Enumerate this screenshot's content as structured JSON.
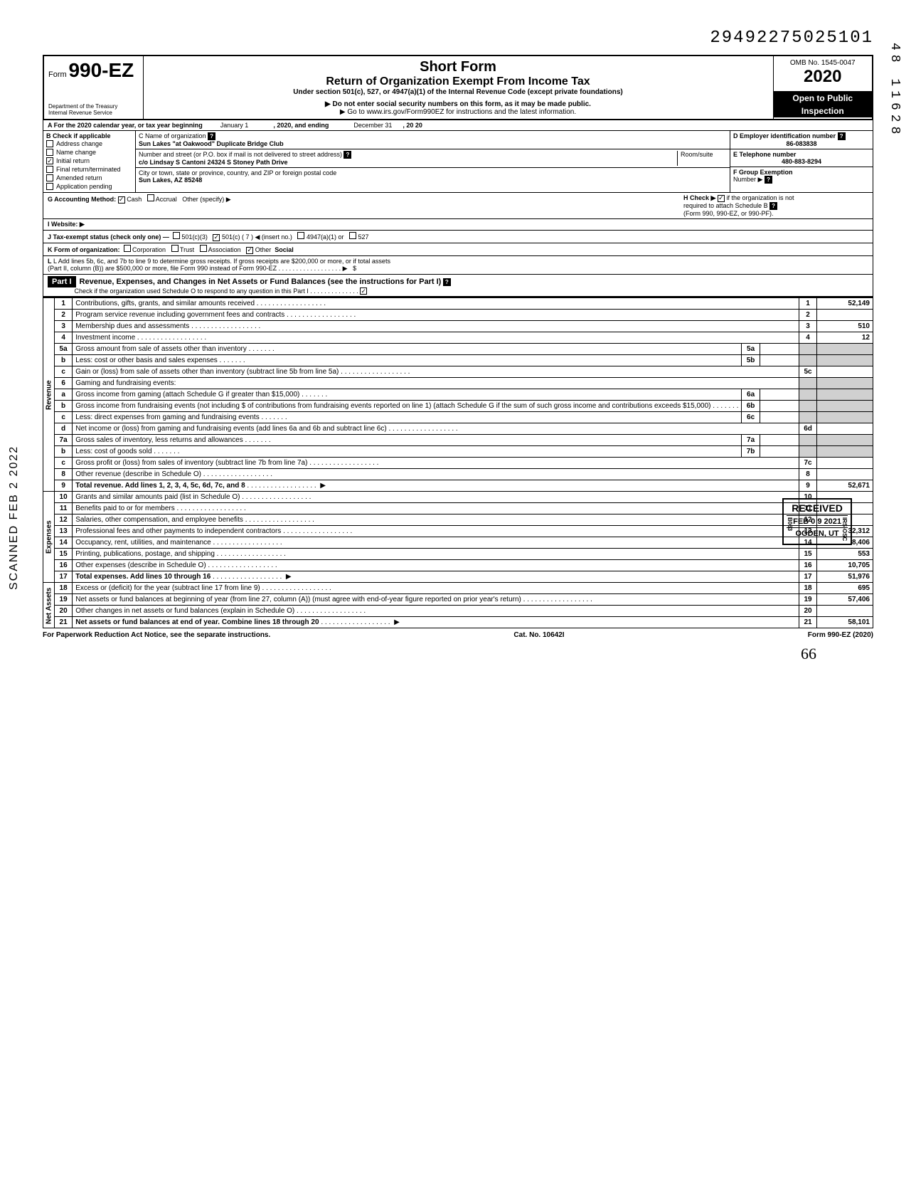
{
  "dln": "29492275025101",
  "side_number": "48 11628",
  "side_stamp": "SCANNED FEB 2 2022",
  "header": {
    "form_prefix": "Form",
    "form_number": "990-EZ",
    "dept": "Department of the Treasury",
    "irs": "Internal Revenue Service",
    "title1": "Short Form",
    "title2": "Return of Organization Exempt From Income Tax",
    "subtitle": "Under section 501(c), 527, or 4947(a)(1) of the Internal Revenue Code (except private foundations)",
    "note1": "▶ Do not enter social security numbers on this form, as it may be made public.",
    "note2": "▶ Go to www.irs.gov/Form990EZ for instructions and the latest information.",
    "omb": "OMB No. 1545-0047",
    "year": "2020",
    "open1": "Open to Public",
    "open2": "Inspection"
  },
  "rowA": {
    "label": "A For the 2020 calendar year, or tax year beginning",
    "begin": "January 1",
    "mid": ", 2020, and ending",
    "end": "December 31",
    "yr": ", 20  20"
  },
  "B": {
    "hdr": "B Check if applicable",
    "items": [
      "Address change",
      "Name change",
      "Initial return",
      "Final return/terminated",
      "Amended return",
      "Application pending"
    ],
    "checked_idx": 2
  },
  "C": {
    "label": "C Name of organization",
    "name": "Sun Lakes \"at Oakwood\" Duplicate Bridge Club",
    "addr_label": "Number and street (or P.O. box if mail is not delivered to street address)",
    "addr": "c/o Lindsay S Cantoni  24324 S Stoney Path Drive",
    "room_label": "Room/suite",
    "city_label": "City or town, state or province, country, and ZIP or foreign postal code",
    "city": "Sun Lakes, AZ 85248"
  },
  "D": {
    "label": "D Employer identification number",
    "value": "86-083838"
  },
  "E": {
    "label": "E Telephone number",
    "value": "480-883-8294"
  },
  "F": {
    "label": "F Group Exemption",
    "label2": "Number ▶"
  },
  "G": {
    "label": "G Accounting Method:",
    "cash": "Cash",
    "accrual": "Accrual",
    "other": "Other (specify) ▶"
  },
  "H": {
    "label": "H Check ▶",
    "text1": "if the organization is not",
    "text2": "required to attach Schedule B",
    "text3": "(Form 990, 990-EZ, or 990-PF)."
  },
  "I": {
    "label": "I  Website: ▶"
  },
  "J": {
    "label": "J Tax-exempt status (check only one) —",
    "o1": "501(c)(3)",
    "o2": "501(c) (  7  ) ◀ (insert no.)",
    "o3": "4947(a)(1) or",
    "o4": "527"
  },
  "K": {
    "label": "K Form of organization:",
    "corp": "Corporation",
    "trust": "Trust",
    "assoc": "Association",
    "other": "Other",
    "other_val": "Social"
  },
  "L": {
    "text1": "L Add lines 5b, 6c, and 7b to line 9 to determine gross receipts. If gross receipts are $200,000 or more, or if total assets",
    "text2": "(Part II, column (B)) are $500,000 or more, file Form 990 instead of Form 990-EZ",
    "arrow": "▶",
    "dollar": "$"
  },
  "part1": {
    "hdr": "Part I",
    "title": "Revenue, Expenses, and Changes in Net Assets or Fund Balances (see the instructions for Part I)",
    "check_line": "Check if the organization used Schedule O to respond to any question in this Part I"
  },
  "sections": {
    "revenue": "Revenue",
    "expenses": "Expenses",
    "netassets": "Net Assets"
  },
  "rows": [
    {
      "n": "1",
      "desc": "Contributions, gifts, grants, and similar amounts received",
      "lbl": "1",
      "amt": "52,149"
    },
    {
      "n": "2",
      "desc": "Program service revenue including government fees and contracts",
      "lbl": "2",
      "amt": ""
    },
    {
      "n": "3",
      "desc": "Membership dues and assessments",
      "lbl": "3",
      "amt": "510"
    },
    {
      "n": "4",
      "desc": "Investment income",
      "lbl": "4",
      "amt": "12"
    },
    {
      "n": "5a",
      "desc": "Gross amount from sale of assets other than inventory",
      "sublbl": "5a",
      "subamt": ""
    },
    {
      "n": "b",
      "desc": "Less: cost or other basis and sales expenses",
      "sublbl": "5b",
      "subamt": ""
    },
    {
      "n": "c",
      "desc": "Gain or (loss) from sale of assets other than inventory (subtract line 5b from line 5a)",
      "lbl": "5c",
      "amt": ""
    },
    {
      "n": "6",
      "desc": "Gaming and fundraising events:"
    },
    {
      "n": "a",
      "desc": "Gross income from gaming (attach Schedule G if greater than $15,000)",
      "sublbl": "6a",
      "subamt": ""
    },
    {
      "n": "b",
      "desc": "Gross income from fundraising events (not including  $                    of contributions from fundraising events reported on line 1) (attach Schedule G if the sum of such gross income and contributions exceeds $15,000)",
      "sublbl": "6b",
      "subamt": ""
    },
    {
      "n": "c",
      "desc": "Less: direct expenses from gaming and fundraising events",
      "sublbl": "6c",
      "subamt": ""
    },
    {
      "n": "d",
      "desc": "Net income or (loss) from gaming and fundraising events (add lines 6a and 6b and subtract line 6c)",
      "lbl": "6d",
      "amt": ""
    },
    {
      "n": "7a",
      "desc": "Gross sales of inventory, less returns and allowances",
      "sublbl": "7a",
      "subamt": ""
    },
    {
      "n": "b",
      "desc": "Less: cost of goods sold",
      "sublbl": "7b",
      "subamt": ""
    },
    {
      "n": "c",
      "desc": "Gross profit or (loss) from sales of inventory (subtract line 7b from line 7a)",
      "lbl": "7c",
      "amt": ""
    },
    {
      "n": "8",
      "desc": "Other revenue (describe in Schedule O)",
      "lbl": "8",
      "amt": ""
    },
    {
      "n": "9",
      "desc": "Total revenue. Add lines 1, 2, 3, 4, 5c, 6d, 7c, and 8",
      "lbl": "9",
      "amt": "52,671",
      "bold": true,
      "arrow": true
    },
    {
      "n": "10",
      "desc": "Grants and similar amounts paid (list in Schedule O)",
      "lbl": "10",
      "amt": ""
    },
    {
      "n": "11",
      "desc": "Benefits paid to or for members",
      "lbl": "11",
      "amt": ""
    },
    {
      "n": "12",
      "desc": "Salaries, other compensation, and employee benefits",
      "lbl": "12",
      "amt": ""
    },
    {
      "n": "13",
      "desc": "Professional fees and other payments to independent contractors",
      "lbl": "13",
      "amt": "32,312"
    },
    {
      "n": "14",
      "desc": "Occupancy, rent, utilities, and maintenance",
      "lbl": "14",
      "amt": "8,406"
    },
    {
      "n": "15",
      "desc": "Printing, publications, postage, and shipping",
      "lbl": "15",
      "amt": "553"
    },
    {
      "n": "16",
      "desc": "Other expenses (describe in Schedule O)",
      "lbl": "16",
      "amt": "10,705"
    },
    {
      "n": "17",
      "desc": "Total expenses. Add lines 10 through 16",
      "lbl": "17",
      "amt": "51,976",
      "bold": true,
      "arrow": true
    },
    {
      "n": "18",
      "desc": "Excess or (deficit) for the year (subtract line 17 from line 9)",
      "lbl": "18",
      "amt": "695"
    },
    {
      "n": "19",
      "desc": "Net assets or fund balances at beginning of year (from line 27, column (A)) (must agree with end-of-year figure reported on prior year's return)",
      "lbl": "19",
      "amt": "57,406"
    },
    {
      "n": "20",
      "desc": "Other changes in net assets or fund balances (explain in Schedule O)",
      "lbl": "20",
      "amt": ""
    },
    {
      "n": "21",
      "desc": "Net assets or fund balances at end of year. Combine lines 18 through 20",
      "lbl": "21",
      "amt": "58,101",
      "bold": true,
      "arrow": true
    }
  ],
  "received": {
    "r1": "RECEIVED",
    "r2": "FEB 0 9 2021",
    "r3": "OGDEN, UT",
    "side": "B063",
    "side2": "IRS-OSC"
  },
  "footer": {
    "left": "For Paperwork Reduction Act Notice, see the separate instructions.",
    "mid": "Cat. No. 10642I",
    "right": "Form 990-EZ (2020)"
  },
  "handwritten": "66",
  "colors": {
    "black": "#000000",
    "white": "#ffffff",
    "shade": "#d0d0d0"
  }
}
